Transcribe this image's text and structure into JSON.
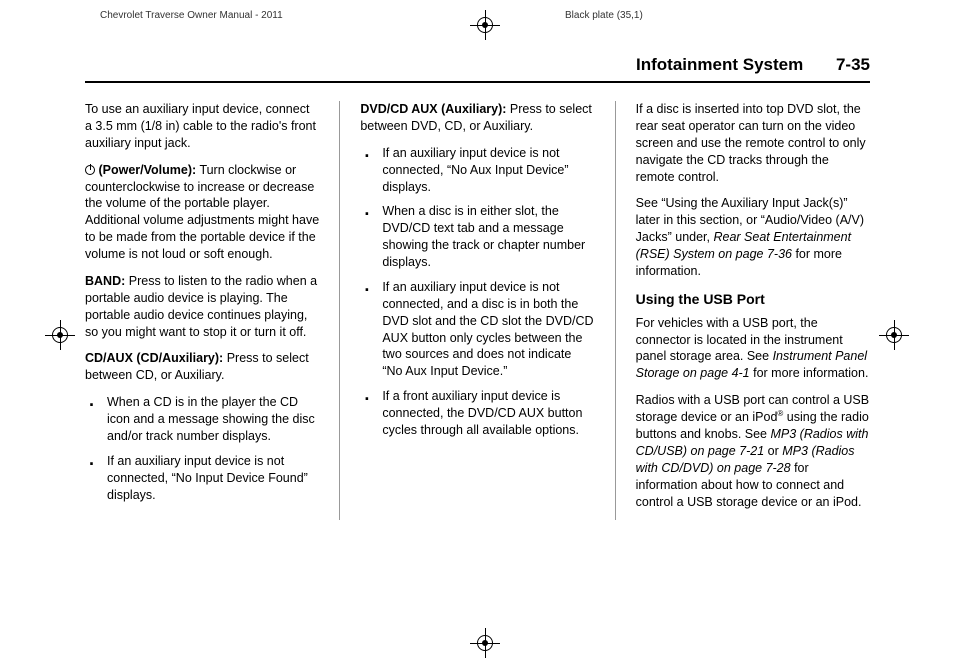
{
  "header": {
    "left": "Chevrolet Traverse Owner Manual - 2011",
    "right": "Black plate (35,1)"
  },
  "page": {
    "section_title": "Infotainment System",
    "page_number": "7-35"
  },
  "col1": {
    "p1": "To use an auxiliary input device, connect a 3.5 mm (1/8 in) cable to the radio's front auxiliary input jack.",
    "power_label": "(Power/Volume):",
    "power_text": "Turn clockwise or counterclockwise to increase or decrease the volume of the portable player. Additional volume adjustments might have to be made from the portable device if the volume is not loud or soft enough.",
    "band_label": "BAND:",
    "band_text": "Press to listen to the radio when a portable audio device is playing. The portable audio device continues playing, so you might want to stop it or turn it off.",
    "cdaux_label": "CD/AUX (CD/Auxiliary):",
    "cdaux_text": "Press to select between CD, or Auxiliary.",
    "li1": "When a CD is in the player the CD icon and a message showing the disc and/or track number displays.",
    "li2": "If an auxiliary input device is not connected, “No Input Device Found” displays."
  },
  "col2": {
    "dvd_label": "DVD/CD AUX (Auxiliary):",
    "dvd_text": "Press to select between DVD, CD, or Auxiliary.",
    "li1": "If an auxiliary input device is not connected, “No Aux Input Device” displays.",
    "li2": "When a disc is in either slot, the DVD/CD text tab and a message showing the track or chapter number displays.",
    "li3": "If an auxiliary input device is not connected, and a disc is in both the DVD slot and the CD slot the DVD/CD AUX button only cycles between the two sources and does not indicate “No Aux Input Device.”",
    "li4": "If a front auxiliary input device is connected, the DVD/CD AUX button cycles through all available options."
  },
  "col3": {
    "p1_a": "If a disc is inserted into top DVD slot, the rear seat operator can turn on the video screen and use the remote control to only navigate the CD tracks through the remote control.",
    "p2_a": "See “Using the Auxiliary Input Jack(s)” later in this section, or “Audio/Video (A/V) Jacks” under, ",
    "p2_italic": "Rear Seat Entertainment (RSE) System on page 7-36",
    "p2_b": " for more information.",
    "usb_head": "Using the USB Port",
    "p3_a": "For vehicles with a USB port, the connector is located in the instrument panel storage area. See ",
    "p3_italic": "Instrument Panel Storage  on page 4-1",
    "p3_b": " for more information.",
    "p4_a": "Radios with a USB port can control a USB storage device or an iPod",
    "p4_sup": "®",
    "p4_b": " using the radio buttons and knobs. See ",
    "p4_italic1": "MP3 (Radios with CD/USB) on page 7-21",
    "p4_c": " or ",
    "p4_italic2": "MP3 (Radios with CD/DVD) on page 7-28",
    "p4_d": " for information about how to connect and control a USB storage device or an iPod."
  },
  "style": {
    "body_font_size": 12.5,
    "header_font_size": 10,
    "page_header_font_size": 17,
    "subhead_font_size": 14,
    "text_color": "#000000",
    "bg_color": "#ffffff",
    "divider_color": "#999999"
  }
}
